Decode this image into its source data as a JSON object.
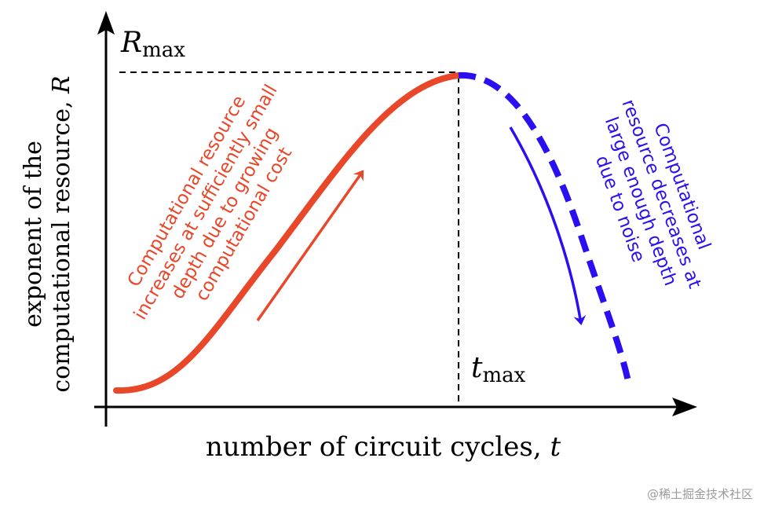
{
  "diagram": {
    "y_axis_label_line1": "exponent of the",
    "y_axis_label_line2_text": "computational resource,",
    "y_axis_label_line2_symbol": "R",
    "x_axis_label_text": "number of circuit cycles,",
    "x_axis_label_symbol": "t",
    "rmax_symbol": "R",
    "rmax_subscript": "max",
    "tmax_symbol": "t",
    "tmax_subscript": "max",
    "rising_annotation": [
      "Computational resource",
      "increases at sufficiently small",
      "depth due to growing",
      "computational cost"
    ],
    "falling_annotation": [
      "Computational",
      "resource decreases at",
      "large enough depth",
      "due to noise"
    ],
    "colors": {
      "rising": "#e8472a",
      "falling": "#2a10f0",
      "axes": "#000000",
      "guides": "#000000"
    }
  },
  "watermark": "@稀土掘金技术社区"
}
